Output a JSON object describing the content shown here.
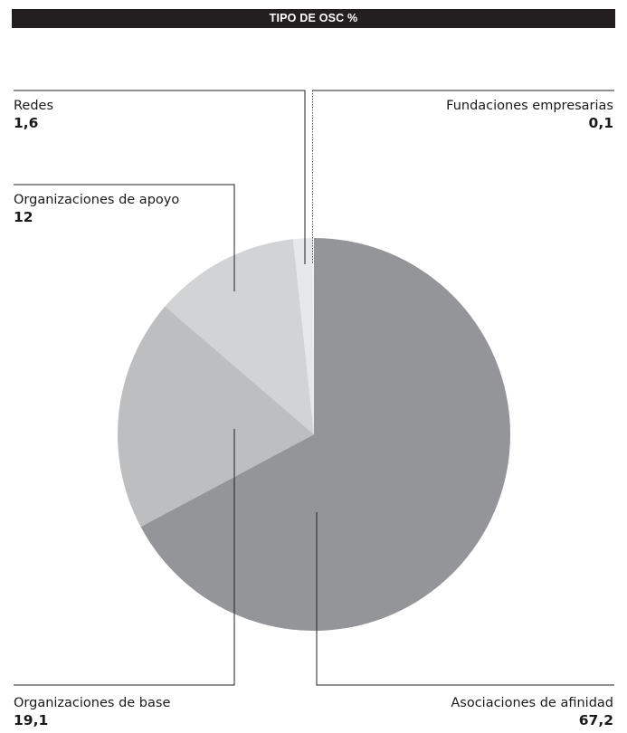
{
  "chart_data": {
    "type": "pie",
    "title": "TIPO DE OSC %",
    "slices": [
      {
        "label": "Asociaciones de afinidad",
        "display": "67,2",
        "value": 67.2,
        "color": "#939598"
      },
      {
        "label": "Organizaciones de base",
        "display": "19,1",
        "value": 19.1,
        "color": "#bcbec0"
      },
      {
        "label": "Organizaciones de apoyo",
        "display": "12",
        "value": 12,
        "color": "#d1d3d4"
      },
      {
        "label": "Redes",
        "display": "1,6",
        "value": 1.6,
        "color": "#e6e7e8"
      },
      {
        "label": "Fundaciones empresarias",
        "display": "0,1",
        "value": 0.1,
        "color": "#f1f2f2"
      }
    ]
  }
}
